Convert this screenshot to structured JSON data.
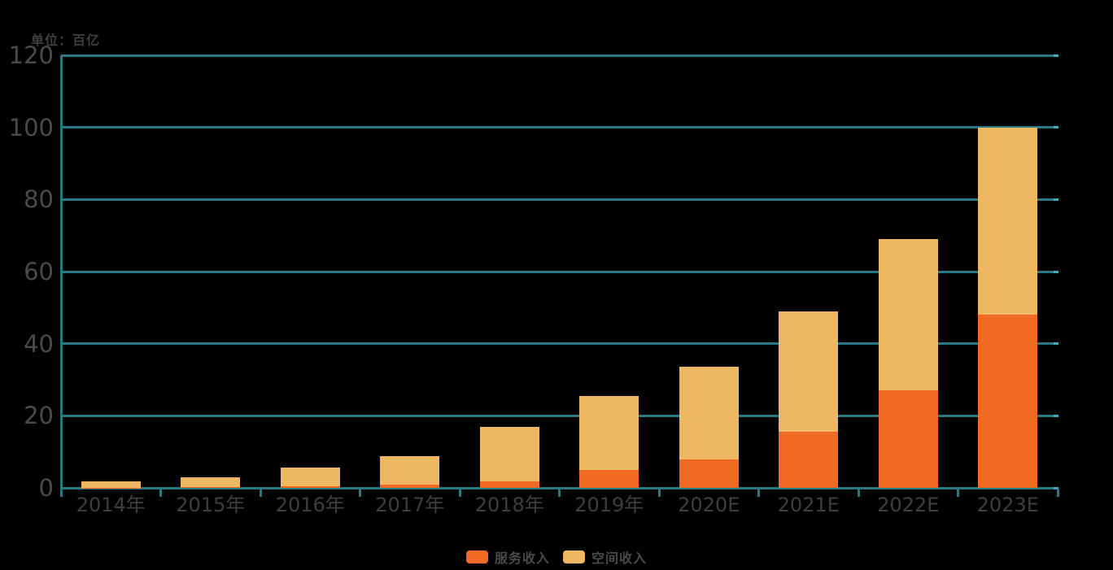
{
  "chart_data": {
    "type": "bar",
    "stacked": true,
    "title": "",
    "unit_label": "单位：百亿",
    "categories": [
      "2014年",
      "2015年",
      "2016年",
      "2017年",
      "2018年",
      "2019年",
      "2020E",
      "2021E",
      "2022E",
      "2023E"
    ],
    "series": [
      {
        "name": "服务收入",
        "color": "#F16A23",
        "values": [
          0.1,
          0.2,
          0.5,
          0.8,
          1.8,
          5,
          8,
          15.5,
          27,
          48
        ]
      },
      {
        "name": "空间收入",
        "color": "#EEB862",
        "values": [
          1.6,
          2.8,
          5.1,
          8.0,
          15.2,
          20.5,
          25.5,
          33.5,
          42,
          52
        ]
      }
    ],
    "totals": [
      1.7,
      3.0,
      5.6,
      8.8,
      17.0,
      25.5,
      33.5,
      49.0,
      69.0,
      100.0
    ],
    "ylim": [
      0,
      120
    ],
    "yticks": [
      0,
      20,
      40,
      60,
      80,
      100,
      120
    ],
    "grid": true,
    "legend_position": "bottom"
  },
  "colors": {
    "background": "#000000",
    "axis": "#2A7884",
    "grid_tip": "#46AABB",
    "y_label": "#4a4a4a",
    "x_label": "#3e3e3e",
    "unit_label": "#3f3f3f",
    "legend_text": "#4a4a4a"
  }
}
